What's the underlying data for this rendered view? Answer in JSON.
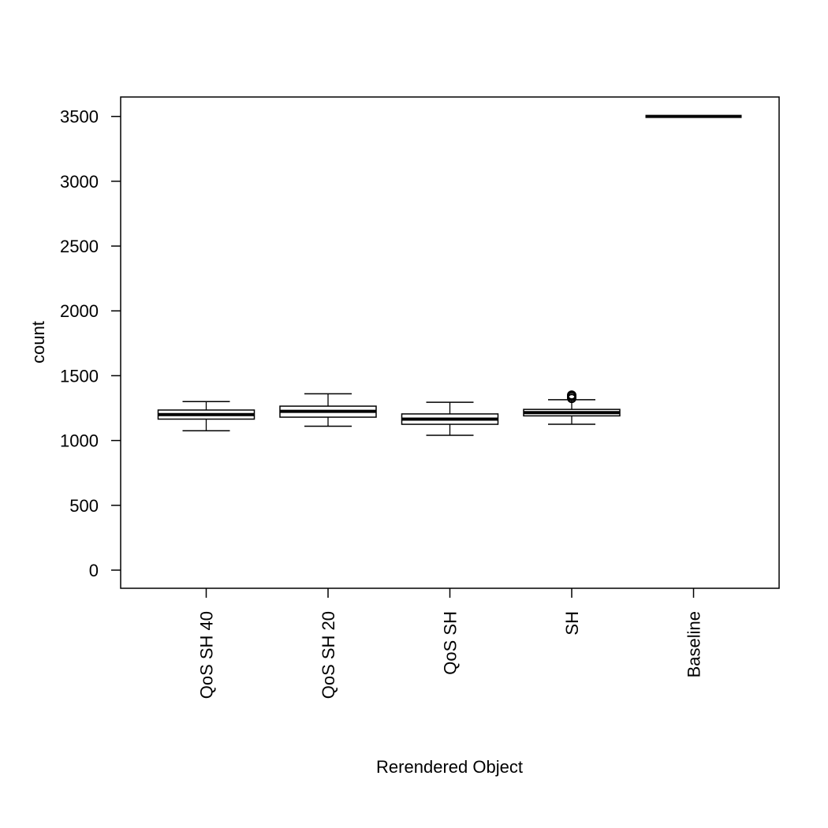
{
  "chart_data": {
    "type": "box",
    "title": "",
    "xlabel": "Rerendered Object",
    "ylabel": "count",
    "ylim": [
      -140,
      3650
    ],
    "yticks": [
      0,
      500,
      1000,
      1500,
      2000,
      2500,
      3000,
      3500
    ],
    "grid": false,
    "categories": [
      "QoS SH 40",
      "QoS SH 20",
      "QoS SH",
      "SH",
      "Baseline"
    ],
    "boxes": [
      {
        "category": "QoS SH 40",
        "whisker_low": 1075,
        "q1": 1165,
        "median": 1200,
        "q3": 1235,
        "whisker_high": 1300,
        "outliers": []
      },
      {
        "category": "QoS SH 20",
        "whisker_low": 1110,
        "q1": 1180,
        "median": 1225,
        "q3": 1265,
        "whisker_high": 1360,
        "outliers": []
      },
      {
        "category": "QoS SH",
        "whisker_low": 1040,
        "q1": 1125,
        "median": 1165,
        "q3": 1205,
        "whisker_high": 1295,
        "outliers": []
      },
      {
        "category": "SH",
        "whisker_low": 1125,
        "q1": 1190,
        "median": 1215,
        "q3": 1240,
        "whisker_high": 1315,
        "outliers": [
          1325,
          1340,
          1350
        ]
      },
      {
        "category": "Baseline",
        "whisker_low": 3500,
        "q1": 3500,
        "median": 3500,
        "q3": 3500,
        "whisker_high": 3500,
        "outliers": []
      }
    ],
    "colors": {
      "stroke": "#000000",
      "box_fill": "#ffffff",
      "background": "#ffffff"
    }
  }
}
